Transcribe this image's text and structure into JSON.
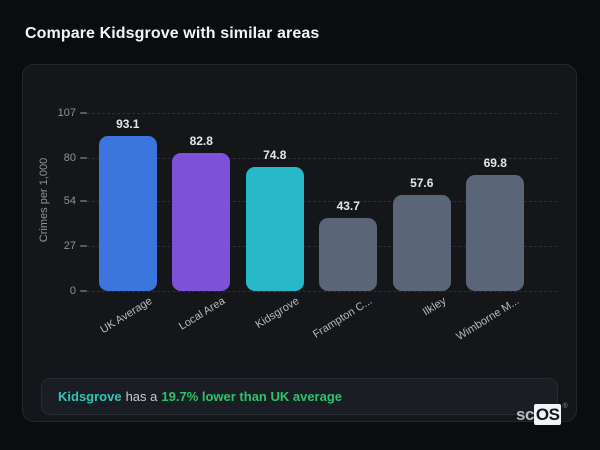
{
  "page": {
    "title": "Compare Kidsgrove with similar areas"
  },
  "colors": {
    "background": "#0b0c0e",
    "card_background": "#141619",
    "note_background": "#1a1d24"
  },
  "chart_data": {
    "type": "bar",
    "title": "Compare Kidsgrove with similar areas",
    "xlabel": "",
    "ylabel": "Crimes per 1,000",
    "ylim": [
      0,
      107
    ],
    "yticks": [
      0,
      27,
      54,
      80,
      107
    ],
    "grid": "dashed-horizontal",
    "legend_position": "none",
    "categories": [
      "UK Average",
      "Local Area",
      "Kidsgrove",
      "Frampton C...",
      "Ilkley",
      "Wimborne M..."
    ],
    "values": [
      93.1,
      82.8,
      74.8,
      43.7,
      57.6,
      69.8
    ],
    "bar_colors": [
      "#3a76dd",
      "#7e52d8",
      "#27b9c9",
      "#5b6578",
      "#5b6578",
      "#5b6578"
    ],
    "highlighted_category": "Kidsgrove"
  },
  "note": {
    "area": "Kidsgrove",
    "connector": "has a",
    "stat": "19.7% lower than UK average",
    "area_color": "#2fc7b4",
    "stat_color": "#2bc46a"
  },
  "logo": {
    "prefix": "sc",
    "box": "OS",
    "registered": "®"
  }
}
